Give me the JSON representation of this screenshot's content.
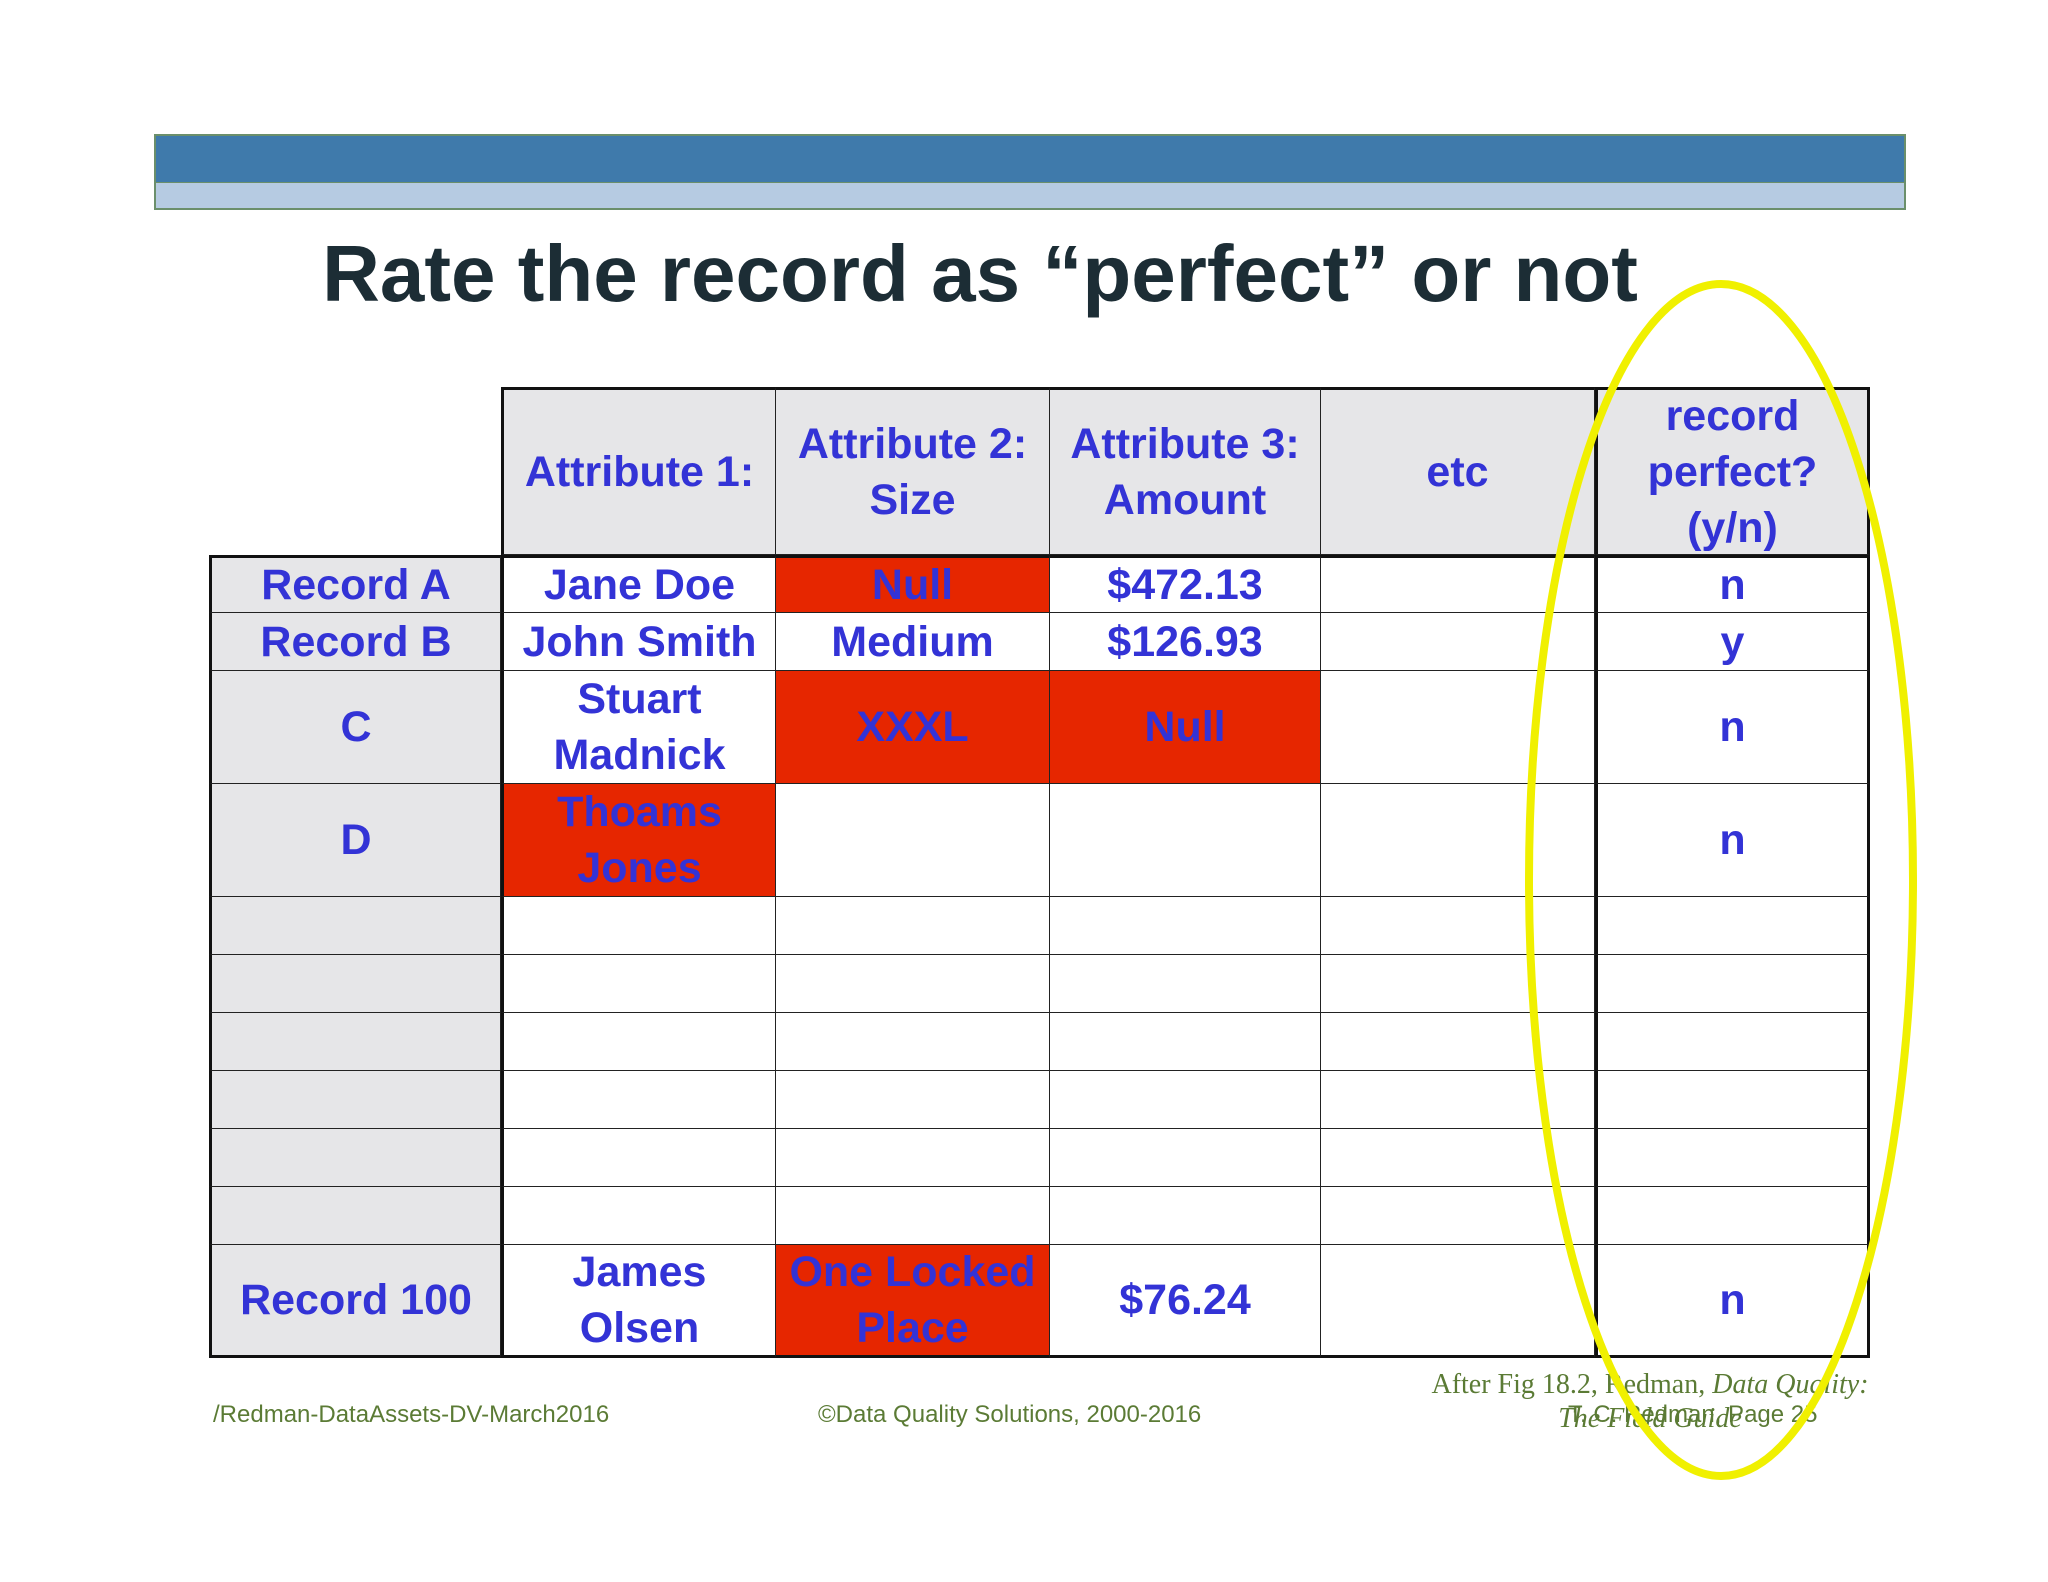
{
  "slide": {
    "title": "Rate the record as “perfect” or not"
  },
  "table": {
    "headers": [
      "Attribute 1:",
      "Attribute 2:\nSize",
      "Attribute 3:\nAmount",
      "etc",
      "record\nperfect?\n(y/n)"
    ],
    "rows": [
      {
        "label": "Record A",
        "cells": [
          "Jane Doe",
          "Null",
          "$472.13",
          "",
          "n"
        ]
      },
      {
        "label": "Record B",
        "cells": [
          "John Smith",
          "Medium",
          "$126.93",
          "",
          "y"
        ]
      },
      {
        "label": "C",
        "cells": [
          "Stuart\nMadnick",
          "XXXL",
          "Null",
          "",
          "n"
        ]
      },
      {
        "label": "D",
        "cells": [
          "Thoams\nJones",
          "",
          "",
          "",
          "n"
        ]
      },
      {
        "label": "",
        "cells": [
          "",
          "",
          "",
          "",
          ""
        ]
      },
      {
        "label": "",
        "cells": [
          "",
          "",
          "",
          "",
          ""
        ]
      },
      {
        "label": "",
        "cells": [
          "",
          "",
          "",
          "",
          ""
        ]
      },
      {
        "label": "",
        "cells": [
          "",
          "",
          "",
          "",
          ""
        ]
      },
      {
        "label": "",
        "cells": [
          "",
          "",
          "",
          "",
          ""
        ]
      },
      {
        "label": "",
        "cells": [
          "",
          "",
          "",
          "",
          ""
        ]
      },
      {
        "label": "Record 100",
        "cells": [
          "James\nOlsen",
          "One Locked\nPlace",
          "$76.24",
          "",
          "n"
        ]
      }
    ],
    "flagged_cells": [
      [
        0,
        1
      ],
      [
        2,
        1
      ],
      [
        2,
        2
      ],
      [
        3,
        0
      ],
      [
        10,
        1
      ]
    ]
  },
  "citation": {
    "line1_prefix": "After Fig 18.2, Redman, ",
    "line1_italic": "Data Quality:",
    "line2_italic": "The Field Guide"
  },
  "footer": {
    "left": "/Redman-DataAssets-DV-March2016",
    "center": "©Data Quality Solutions, 2000-2016",
    "right": "T. C. Redman, Page 25"
  },
  "colors": {
    "header_band": "#3f7aab",
    "sub_band": "#b6cbe2",
    "cell_text": "#3333d6",
    "flag_fill": "#e62600",
    "highlight_ellipse": "#f0f000"
  }
}
